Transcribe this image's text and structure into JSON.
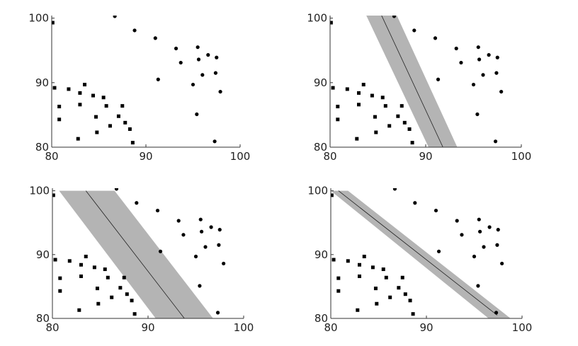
{
  "chart_data": [
    {
      "type": "scatter",
      "panel": "top-left",
      "title": "",
      "xlabel": "",
      "ylabel": "",
      "xlim": [
        80,
        100
      ],
      "ylim": [
        80,
        100
      ],
      "xticks": [
        "80",
        "90",
        "100"
      ],
      "yticks": [
        "80",
        "90",
        "100"
      ],
      "band": null
    },
    {
      "type": "scatter",
      "panel": "top-right",
      "title": "",
      "xlabel": "",
      "ylabel": "",
      "xlim": [
        80,
        100
      ],
      "ylim": [
        80,
        100
      ],
      "xticks": [
        "80",
        "90",
        "100"
      ],
      "yticks": [
        "80",
        "90",
        "100"
      ],
      "band": {
        "line": [
          [
            85.2,
            101
          ],
          [
            91.8,
            80
          ]
        ],
        "margin_left": [
          [
            83.6,
            101
          ],
          [
            90.3,
            80
          ]
        ],
        "margin_right": [
          [
            86.8,
            101
          ],
          [
            93.3,
            80
          ]
        ],
        "color": "#b4b4b4"
      }
    },
    {
      "type": "scatter",
      "panel": "bottom-left",
      "title": "",
      "xlabel": "",
      "ylabel": "",
      "xlim": [
        80,
        100
      ],
      "ylim": [
        80,
        100
      ],
      "xticks": [
        "80",
        "90",
        "100"
      ],
      "yticks": [
        "80",
        "90",
        "100"
      ],
      "band": {
        "line": [
          [
            83.5,
            100
          ],
          [
            93.8,
            80
          ]
        ],
        "margin_left": [
          [
            80.7,
            100
          ],
          [
            90.8,
            80
          ]
        ],
        "margin_right": [
          [
            86.5,
            100
          ],
          [
            96.8,
            80
          ]
        ],
        "color": "#b4b4b4"
      }
    },
    {
      "type": "scatter",
      "panel": "bottom-right",
      "title": "",
      "xlabel": "",
      "ylabel": "",
      "xlim": [
        80,
        100
      ],
      "ylim": [
        80,
        100
      ],
      "xticks": [
        "80",
        "90",
        "100"
      ],
      "yticks": [
        "80",
        "90",
        "100"
      ],
      "band": {
        "line": [
          [
            80.8,
            100
          ],
          [
            97.4,
            80.5
          ]
        ],
        "margin_left": [
          [
            80,
            100
          ],
          [
            96.5,
            80
          ]
        ],
        "margin_right": [
          [
            81.8,
            100
          ],
          [
            98.8,
            80
          ]
        ],
        "color": "#b4b4b4"
      }
    }
  ],
  "series": {
    "squares": {
      "name": "",
      "marker": "square",
      "points": [
        [
          80.1,
          99.3
        ],
        [
          80.3,
          89.2
        ],
        [
          80.8,
          86.3
        ],
        [
          80.8,
          84.3
        ],
        [
          81.8,
          89.0
        ],
        [
          82.8,
          81.3
        ],
        [
          83.0,
          88.4
        ],
        [
          83.0,
          86.6
        ],
        [
          83.5,
          89.7
        ],
        [
          84.4,
          88.0
        ],
        [
          84.7,
          84.7
        ],
        [
          84.8,
          82.3
        ],
        [
          85.5,
          87.7
        ],
        [
          85.8,
          86.4
        ],
        [
          86.2,
          83.3
        ],
        [
          87.1,
          84.8
        ],
        [
          87.5,
          86.4
        ],
        [
          87.8,
          83.8
        ],
        [
          88.3,
          82.8
        ],
        [
          88.6,
          80.7
        ]
      ]
    },
    "dots": {
      "name": "",
      "marker": "circle",
      "points": [
        [
          86.7,
          100.3
        ],
        [
          88.8,
          98.1
        ],
        [
          91.0,
          96.9
        ],
        [
          91.3,
          90.5
        ],
        [
          93.2,
          95.3
        ],
        [
          93.7,
          93.1
        ],
        [
          95.0,
          89.7
        ],
        [
          95.4,
          85.1
        ],
        [
          95.5,
          95.5
        ],
        [
          95.6,
          93.6
        ],
        [
          96.0,
          91.2
        ],
        [
          96.6,
          94.3
        ],
        [
          97.4,
          91.5
        ],
        [
          97.5,
          93.9
        ],
        [
          97.9,
          88.6
        ],
        [
          97.3,
          80.9
        ]
      ]
    }
  }
}
